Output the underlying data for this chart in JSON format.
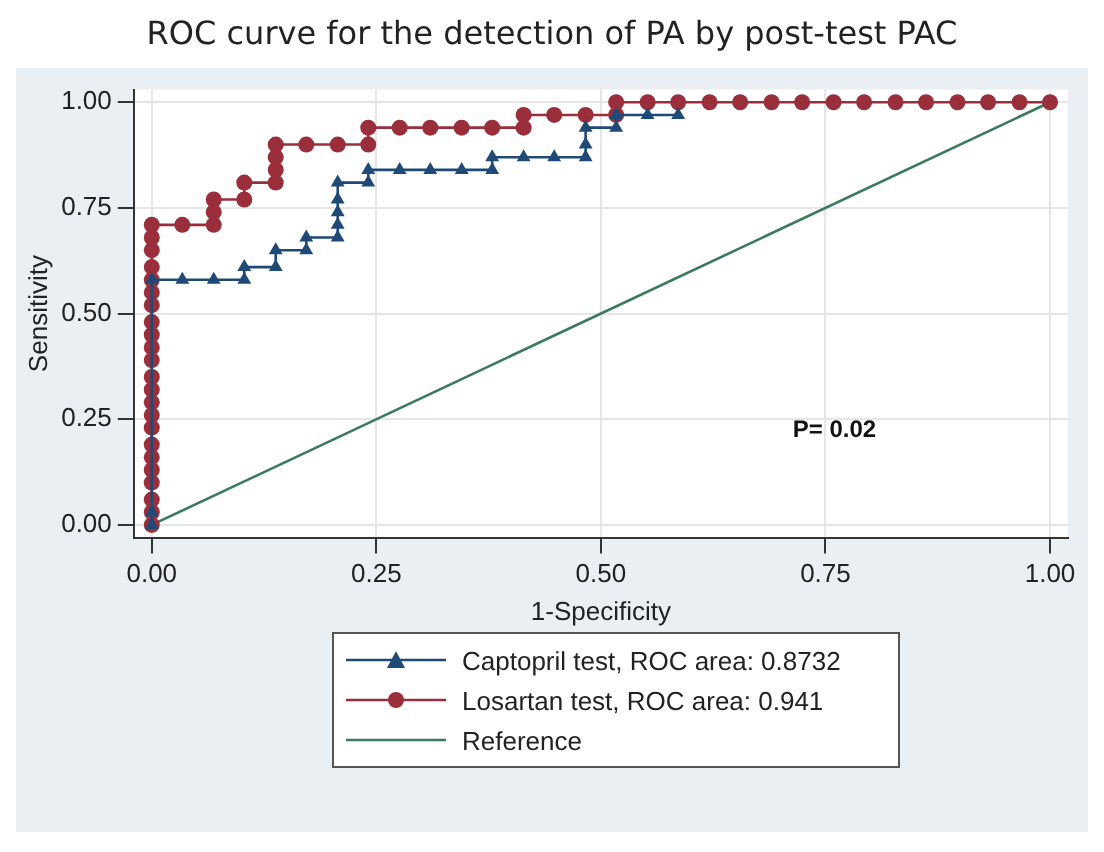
{
  "chart_data": {
    "type": "line",
    "title": "ROC curve for the detection of PA by post-test PAC",
    "xlabel": "1-Specificity",
    "ylabel": "Sensitivity",
    "xlim": [
      -0.02,
      1.02
    ],
    "ylim": [
      -0.03,
      1.03
    ],
    "xticks": [
      {
        "value": 0,
        "label": "0.00"
      },
      {
        "value": 0.25,
        "label": "0.25"
      },
      {
        "value": 0.5,
        "label": "0.50"
      },
      {
        "value": 0.75,
        "label": "0.75"
      },
      {
        "value": 1,
        "label": "1.00"
      }
    ],
    "yticks": [
      {
        "value": 0,
        "label": "0.00"
      },
      {
        "value": 0.25,
        "label": "0.25"
      },
      {
        "value": 0.5,
        "label": "0.50"
      },
      {
        "value": 0.75,
        "label": "0.75"
      },
      {
        "value": 1,
        "label": "1.00"
      }
    ],
    "grid": true,
    "legend": "bottom",
    "line_style": "solid",
    "annotations": [
      "P= 0.02"
    ],
    "series": [
      {
        "name": "Captopril test, ROC area: 0.8732",
        "color": "#1f4a78",
        "marker": "triangle",
        "x": [
          0,
          0,
          0,
          0.034,
          0.069,
          0.103,
          0.103,
          0.138,
          0.138,
          0.172,
          0.172,
          0.207,
          0.207,
          0.207,
          0.207,
          0.207,
          0.241,
          0.241,
          0.276,
          0.31,
          0.345,
          0.379,
          0.379,
          0.414,
          0.448,
          0.483,
          0.483,
          0.483,
          0.517,
          0.517,
          0.552,
          0.586
        ],
        "values": [
          0,
          0.03,
          0.58,
          0.58,
          0.58,
          0.58,
          0.61,
          0.61,
          0.65,
          0.65,
          0.68,
          0.68,
          0.71,
          0.74,
          0.77,
          0.81,
          0.81,
          0.84,
          0.84,
          0.84,
          0.84,
          0.84,
          0.87,
          0.87,
          0.87,
          0.87,
          0.9,
          0.94,
          0.94,
          0.97,
          0.97,
          0.97
        ]
      },
      {
        "name": "Losartan test, ROC area: 0.941",
        "color": "#9a2e3a",
        "marker": "circle",
        "x": [
          0,
          0,
          0,
          0,
          0,
          0,
          0,
          0,
          0,
          0,
          0,
          0,
          0,
          0,
          0,
          0,
          0,
          0,
          0,
          0,
          0,
          0,
          0,
          0.034,
          0.069,
          0.069,
          0.069,
          0.103,
          0.103,
          0.138,
          0.138,
          0.138,
          0.138,
          0.172,
          0.207,
          0.241,
          0.241,
          0.276,
          0.31,
          0.345,
          0.379,
          0.414,
          0.414,
          0.448,
          0.483,
          0.517,
          0.517,
          0.552,
          0.586,
          0.621,
          0.655,
          0.69,
          0.724,
          0.759,
          0.793,
          0.828,
          0.862,
          0.897,
          0.931,
          0.966,
          1
        ],
        "values": [
          0,
          0.03,
          0.06,
          0.1,
          0.13,
          0.16,
          0.19,
          0.23,
          0.26,
          0.29,
          0.32,
          0.35,
          0.39,
          0.42,
          0.45,
          0.48,
          0.52,
          0.55,
          0.58,
          0.61,
          0.65,
          0.68,
          0.71,
          0.71,
          0.71,
          0.74,
          0.77,
          0.77,
          0.81,
          0.81,
          0.84,
          0.87,
          0.9,
          0.9,
          0.9,
          0.9,
          0.94,
          0.94,
          0.94,
          0.94,
          0.94,
          0.94,
          0.97,
          0.97,
          0.97,
          0.97,
          1,
          1,
          1,
          1,
          1,
          1,
          1,
          1,
          1,
          1,
          1,
          1,
          1,
          1,
          1
        ]
      },
      {
        "name": "Reference",
        "color": "#3b7a5c",
        "marker": "none",
        "x": [
          0,
          1
        ],
        "values": [
          0,
          1
        ]
      }
    ]
  }
}
